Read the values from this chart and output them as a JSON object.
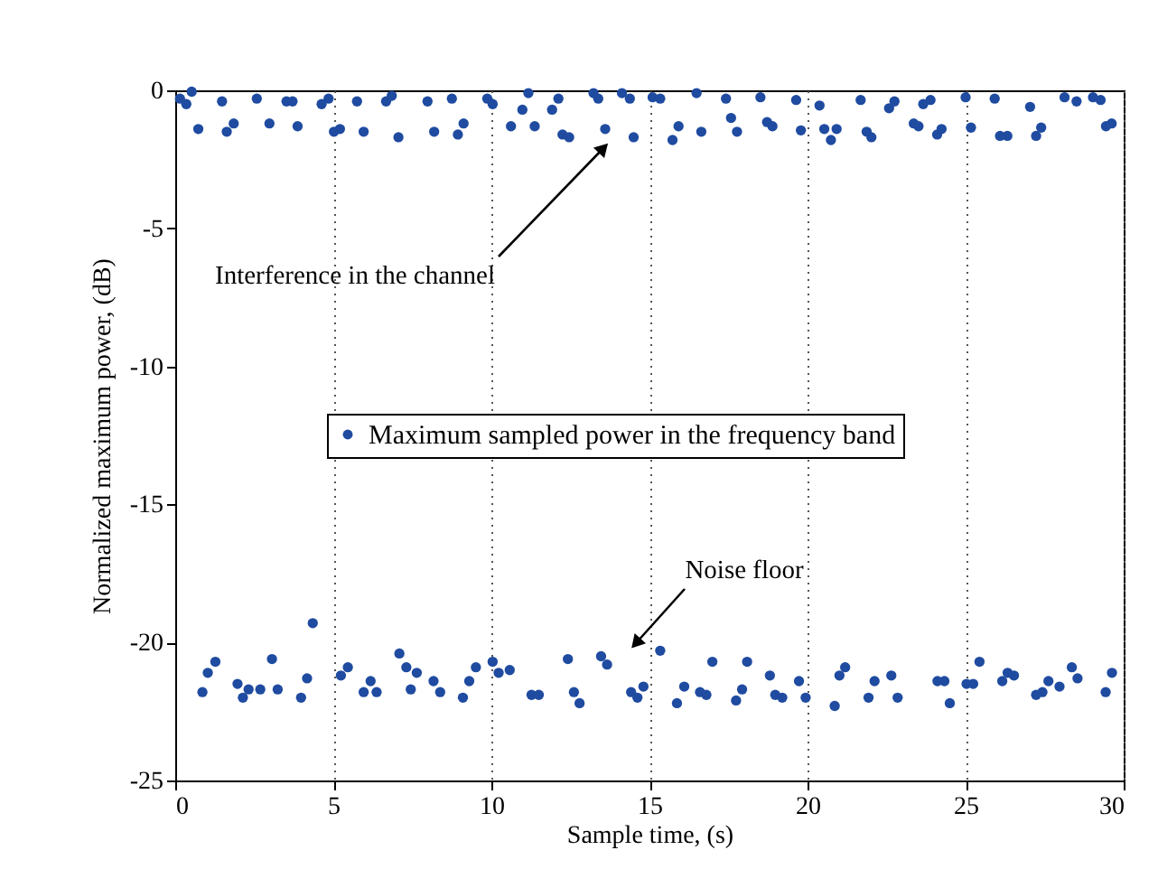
{
  "chart_data": {
    "type": "scatter",
    "xlabel": "Sample time, (s)",
    "ylabel": "Normalized maximum power, (dB)",
    "xlim": [
      0,
      30
    ],
    "ylim": [
      -25,
      0
    ],
    "xticks": [
      0,
      5,
      10,
      15,
      20,
      25,
      30
    ],
    "yticks": [
      -25,
      -20,
      -15,
      -10,
      -5,
      0
    ],
    "grid": "x",
    "legend": "center",
    "marker": "circle",
    "annotations": [
      "Interference in the channel",
      "Noise floor"
    ],
    "series": [
      {
        "name": "Maximum sampled power in the frequency band",
        "color": "#1f4ba0",
        "x": [
          0.15,
          0.35,
          0.52,
          0.73,
          1.48,
          1.63,
          1.85,
          2.58,
          2.98,
          3.52,
          3.71,
          3.87,
          4.63,
          4.85,
          5.02,
          5.21,
          5.75,
          5.96,
          6.67,
          6.85,
          7.06,
          7.98,
          8.19,
          8.75,
          8.94,
          9.12,
          9.87,
          10.04,
          10.62,
          10.98,
          11.17,
          11.37,
          11.92,
          12.12,
          12.25,
          12.46,
          13.23,
          13.38,
          13.6,
          14.13,
          14.38,
          14.5,
          15.1,
          15.34,
          15.73,
          15.92,
          16.49,
          16.64,
          17.42,
          17.58,
          17.77,
          18.51,
          18.72,
          18.89,
          19.64,
          19.79,
          20.38,
          20.53,
          20.74,
          20.92,
          21.68,
          21.87,
          22.02,
          22.58,
          22.75,
          23.36,
          23.51,
          23.66,
          23.89,
          24.1,
          24.24,
          25.0,
          25.17,
          25.92,
          26.09,
          26.32,
          27.04,
          27.23,
          27.39,
          28.13,
          28.51,
          29.03,
          29.27,
          29.44,
          29.62,
          0.86,
          1.03,
          1.27,
          1.97,
          2.14,
          2.32,
          2.69,
          3.06,
          3.24,
          3.98,
          4.17,
          4.35,
          5.24,
          5.46,
          5.96,
          6.18,
          6.37,
          7.09,
          7.31,
          7.45,
          7.64,
          8.17,
          8.38,
          9.1,
          9.3,
          9.51,
          10.04,
          10.23,
          10.58,
          11.27,
          11.5,
          12.42,
          12.61,
          12.79,
          13.47,
          13.66,
          14.42,
          14.62,
          14.81,
          15.34,
          15.87,
          16.1,
          16.6,
          16.8,
          16.99,
          17.74,
          17.93,
          18.09,
          18.81,
          18.98,
          19.2,
          19.73,
          19.94,
          20.86,
          21.01,
          21.19,
          21.93,
          22.12,
          22.65,
          22.85,
          24.11,
          24.33,
          24.5,
          25.03,
          25.24,
          25.44,
          26.16,
          26.33,
          26.53,
          27.23,
          27.43,
          27.62,
          27.97,
          28.36,
          28.54,
          29.43,
          29.63
        ],
        "values": [
          -0.3,
          -0.5,
          -0.05,
          -1.4,
          -0.4,
          -1.5,
          -1.2,
          -0.3,
          -1.2,
          -0.4,
          -0.4,
          -1.3,
          -0.5,
          -0.3,
          -1.5,
          -1.4,
          -0.4,
          -1.5,
          -0.4,
          -0.2,
          -1.7,
          -0.4,
          -1.5,
          -0.3,
          -1.6,
          -1.2,
          -0.3,
          -0.5,
          -1.3,
          -0.7,
          -0.1,
          -1.3,
          -0.7,
          -0.3,
          -1.6,
          -1.7,
          -0.1,
          -0.3,
          -1.4,
          -0.1,
          -0.3,
          -1.7,
          -0.25,
          -0.3,
          -1.8,
          -1.3,
          -0.1,
          -1.5,
          -0.3,
          -1.0,
          -1.5,
          -0.25,
          -1.15,
          -1.3,
          -0.35,
          -1.45,
          -0.55,
          -1.4,
          -1.8,
          -1.4,
          -0.35,
          -1.5,
          -1.7,
          -0.65,
          -0.4,
          -1.2,
          -1.3,
          -0.5,
          -0.35,
          -1.6,
          -1.4,
          -0.25,
          -1.35,
          -0.3,
          -1.65,
          -1.65,
          -0.6,
          -1.65,
          -1.35,
          -0.25,
          -0.4,
          -0.25,
          -0.35,
          -1.3,
          -1.2,
          -21.8,
          -21.1,
          -20.7,
          -21.5,
          -22.0,
          -21.7,
          -21.7,
          -20.6,
          -21.7,
          -22.0,
          -21.3,
          -19.3,
          -21.2,
          -20.9,
          -21.8,
          -21.4,
          -21.8,
          -20.4,
          -20.9,
          -21.7,
          -21.1,
          -21.4,
          -21.8,
          -22.0,
          -21.4,
          -20.9,
          -20.7,
          -21.1,
          -21.0,
          -21.9,
          -21.9,
          -20.6,
          -21.8,
          -22.2,
          -20.5,
          -20.8,
          -21.8,
          -22.0,
          -21.6,
          -20.3,
          -22.2,
          -21.6,
          -21.8,
          -21.9,
          -20.7,
          -22.1,
          -21.7,
          -20.7,
          -21.2,
          -21.9,
          -22.0,
          -21.4,
          -22.0,
          -22.3,
          -21.2,
          -20.9,
          -22.0,
          -21.4,
          -21.2,
          -22.0,
          -21.4,
          -21.4,
          -22.2,
          -21.5,
          -21.5,
          -20.7,
          -21.4,
          -21.1,
          -21.2,
          -21.9,
          -21.8,
          -21.4,
          -21.6,
          -20.9,
          -21.3,
          -21.8,
          -21.1
        ]
      }
    ]
  }
}
